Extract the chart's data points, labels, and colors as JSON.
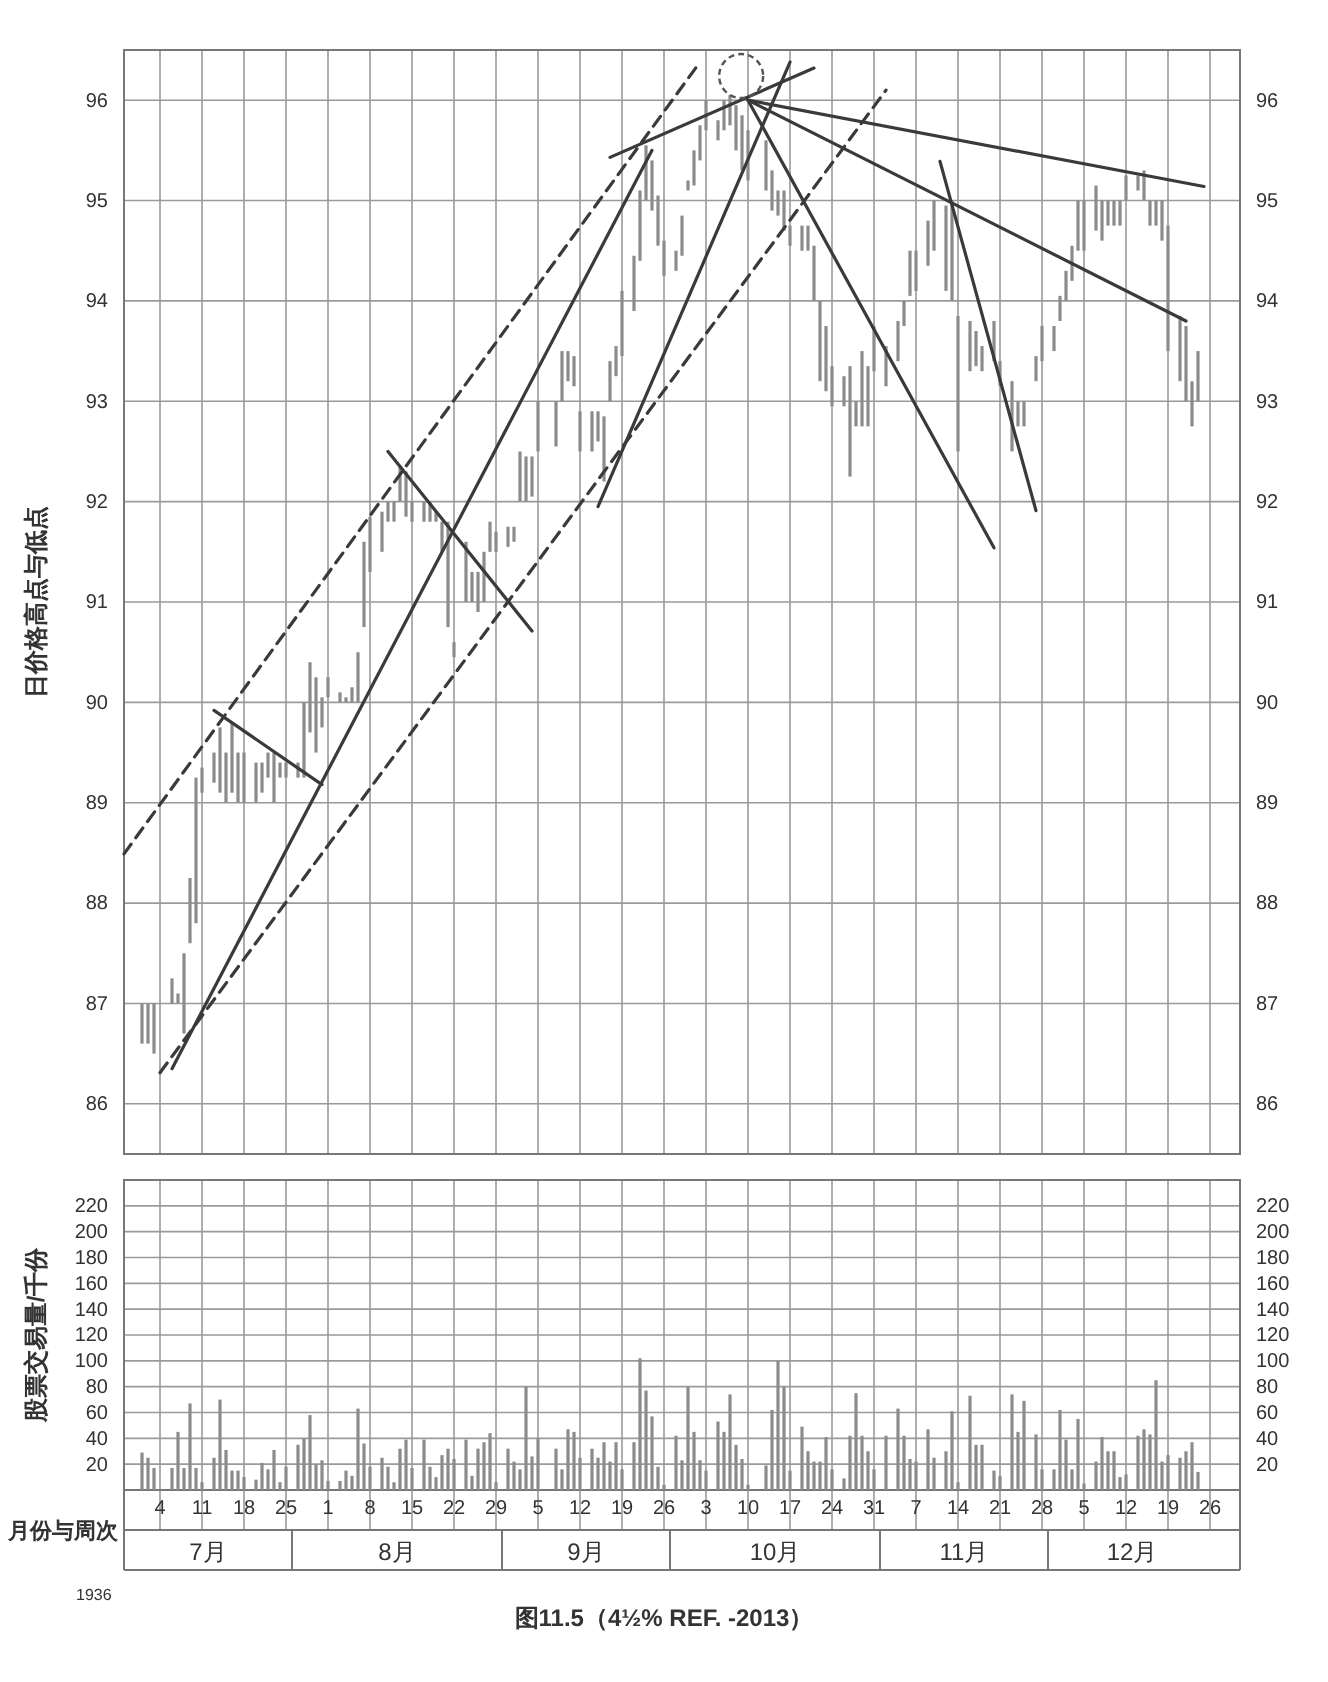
{
  "chart_data": [
    {
      "type": "bar",
      "ylabel": "日价格高点与低点",
      "tick_labels": "y",
      "grid": true,
      "xlim": [
        "1936-06-28",
        "1936-12-31"
      ],
      "xticks": [
        {
          "value": "1936-07-04",
          "label": null
        },
        {
          "value": "1936-07-11",
          "label": null
        },
        {
          "value": "1936-07-18",
          "label": null
        },
        {
          "value": "1936-07-25",
          "label": null
        },
        {
          "value": "1936-08-01",
          "label": null
        },
        {
          "value": "1936-08-08",
          "label": null
        },
        {
          "value": "1936-08-15",
          "label": null
        },
        {
          "value": "1936-08-22",
          "label": null
        },
        {
          "value": "1936-08-29",
          "label": null
        },
        {
          "value": "1936-09-05",
          "label": null
        },
        {
          "value": "1936-09-12",
          "label": null
        },
        {
          "value": "1936-09-19",
          "label": null
        },
        {
          "value": "1936-09-26",
          "label": null
        },
        {
          "value": "1936-10-03",
          "label": null
        },
        {
          "value": "1936-10-10",
          "label": null
        },
        {
          "value": "1936-10-17",
          "label": null
        },
        {
          "value": "1936-10-24",
          "label": null
        },
        {
          "value": "1936-10-31",
          "label": null
        },
        {
          "value": "1936-11-07",
          "label": null
        },
        {
          "value": "1936-11-14",
          "label": null
        },
        {
          "value": "1936-11-21",
          "label": null
        },
        {
          "value": "1936-11-28",
          "label": null
        },
        {
          "value": "1936-12-05",
          "label": null
        },
        {
          "value": "1936-12-12",
          "label": null
        },
        {
          "value": "1936-12-19",
          "label": null
        },
        {
          "value": "1936-12-26",
          "label": null
        }
      ],
      "ylim": [
        85.5,
        96.5
      ],
      "yticks": [
        86,
        87,
        88,
        89,
        90,
        91,
        92,
        93,
        94,
        95,
        96
      ],
      "y2lim": [
        85.5,
        96.5
      ],
      "y2ticks": [
        86,
        87,
        88,
        89,
        90,
        91,
        92,
        93,
        94,
        95,
        96
      ],
      "x": [
        "1936-07-01",
        "1936-07-02",
        "1936-07-03",
        "1936-07-06",
        "1936-07-07",
        "1936-07-08",
        "1936-07-09",
        "1936-07-10",
        "1936-07-11",
        "1936-07-13",
        "1936-07-14",
        "1936-07-15",
        "1936-07-16",
        "1936-07-17",
        "1936-07-18",
        "1936-07-20",
        "1936-07-21",
        "1936-07-22",
        "1936-07-23",
        "1936-07-24",
        "1936-07-25",
        "1936-07-27",
        "1936-07-28",
        "1936-07-29",
        "1936-07-30",
        "1936-07-31",
        "1936-08-01",
        "1936-08-03",
        "1936-08-04",
        "1936-08-05",
        "1936-08-06",
        "1936-08-07",
        "1936-08-08",
        "1936-08-10",
        "1936-08-11",
        "1936-08-12",
        "1936-08-13",
        "1936-08-14",
        "1936-08-15",
        "1936-08-17",
        "1936-08-18",
        "1936-08-19",
        "1936-08-20",
        "1936-08-21",
        "1936-08-22",
        "1936-08-24",
        "1936-08-25",
        "1936-08-26",
        "1936-08-27",
        "1936-08-28",
        "1936-08-29",
        "1936-08-31",
        "1936-09-01",
        "1936-09-02",
        "1936-09-03",
        "1936-09-04",
        "1936-09-05",
        "1936-09-08",
        "1936-09-09",
        "1936-09-10",
        "1936-09-11",
        "1936-09-12",
        "1936-09-14",
        "1936-09-15",
        "1936-09-16",
        "1936-09-17",
        "1936-09-18",
        "1936-09-19",
        "1936-09-21",
        "1936-09-22",
        "1936-09-23",
        "1936-09-24",
        "1936-09-25",
        "1936-09-26",
        "1936-09-28",
        "1936-09-29",
        "1936-09-30",
        "1936-10-01",
        "1936-10-02",
        "1936-10-03",
        "1936-10-05",
        "1936-10-06",
        "1936-10-07",
        "1936-10-08",
        "1936-10-09",
        "1936-10-10",
        "1936-10-13",
        "1936-10-14",
        "1936-10-15",
        "1936-10-16",
        "1936-10-17",
        "1936-10-19",
        "1936-10-20",
        "1936-10-21",
        "1936-10-22",
        "1936-10-23",
        "1936-10-24",
        "1936-10-26",
        "1936-10-27",
        "1936-10-28",
        "1936-10-29",
        "1936-10-30",
        "1936-10-31",
        "1936-11-02",
        "1936-11-04",
        "1936-11-05",
        "1936-11-06",
        "1936-11-07",
        "1936-11-09",
        "1936-11-10",
        "1936-11-12",
        "1936-11-13",
        "1936-11-14",
        "1936-11-16",
        "1936-11-17",
        "1936-11-18",
        "1936-11-20",
        "1936-11-21",
        "1936-11-23",
        "1936-11-24",
        "1936-11-25",
        "1936-11-27",
        "1936-11-28",
        "1936-11-30",
        "1936-12-01",
        "1936-12-02",
        "1936-12-03",
        "1936-12-04",
        "1936-12-05",
        "1936-12-07",
        "1936-12-08",
        "1936-12-09",
        "1936-12-10",
        "1936-12-11",
        "1936-12-12",
        "1936-12-14",
        "1936-12-15",
        "1936-12-16",
        "1936-12-17",
        "1936-12-18",
        "1936-12-19",
        "1936-12-21",
        "1936-12-22",
        "1936-12-23",
        "1936-12-24"
      ],
      "series": [
        {
          "type": "bar",
          "color": "#8c8c8c",
          "base": [
            86.6,
            86.6,
            86.5,
            87.0,
            87.0,
            86.7,
            87.6,
            87.8,
            89.1,
            89.2,
            89.1,
            89.0,
            89.1,
            89.0,
            89.0,
            89.0,
            89.1,
            89.25,
            89.0,
            89.25,
            89.25,
            89.25,
            89.25,
            89.7,
            89.5,
            89.75,
            90.05,
            90.0,
            90.0,
            90.0,
            90.0,
            90.75,
            91.3,
            91.5,
            91.8,
            91.8,
            92.0,
            91.85,
            91.8,
            91.8,
            91.8,
            91.8,
            91.5,
            90.75,
            90.45,
            91.0,
            91.0,
            90.9,
            91.0,
            91.5,
            91.5,
            91.55,
            91.6,
            92.0,
            92.0,
            92.05,
            92.5,
            92.55,
            93.0,
            93.2,
            93.15,
            92.5,
            92.5,
            92.6,
            92.2,
            93.0,
            93.25,
            93.45,
            93.9,
            94.4,
            95.0,
            94.9,
            94.55,
            94.25,
            94.3,
            94.45,
            95.1,
            95.15,
            95.4,
            95.7,
            95.6,
            95.7,
            95.75,
            95.5,
            95.3,
            95.2,
            95.1,
            94.9,
            94.85,
            94.7,
            94.55,
            94.5,
            94.5,
            94.0,
            93.2,
            93.1,
            92.95,
            92.95,
            92.25,
            92.75,
            92.75,
            92.75,
            93.3,
            93.15,
            93.4,
            93.75,
            94.05,
            94.1,
            94.35,
            94.5,
            94.1,
            94.0,
            92.5,
            93.3,
            93.35,
            93.3,
            93.4,
            93.15,
            92.5,
            92.75,
            92.75,
            93.2,
            93.4,
            93.5,
            93.8,
            94.0,
            94.2,
            94.5,
            94.5,
            94.7,
            94.6,
            94.75,
            94.75,
            94.75,
            95.0,
            95.1,
            95.0,
            94.75,
            94.75,
            94.6,
            93.5,
            93.2,
            93.0,
            92.75,
            93.0
          ],
          "values": [
            0.4,
            0.4,
            0.5,
            0.25,
            0.1,
            0.8,
            0.65,
            1.45,
            0.25,
            0.3,
            0.65,
            0.5,
            0.7,
            0.5,
            0.5,
            0.4,
            0.3,
            0.25,
            0.5,
            0.15,
            0.15,
            0.15,
            0.75,
            0.7,
            0.75,
            0.3,
            0.2,
            0.1,
            0.05,
            0.15,
            0.5,
            0.85,
            0.55,
            0.4,
            0.2,
            0.2,
            0.35,
            0.45,
            0.2,
            0.2,
            0.2,
            0.1,
            0.3,
            1.05,
            0.15,
            0.6,
            0.3,
            0.4,
            0.5,
            0.3,
            0.2,
            0.2,
            0.15,
            0.5,
            0.45,
            0.4,
            0.5,
            0.45,
            0.5,
            0.3,
            0.3,
            0.4,
            0.4,
            0.3,
            0.65,
            0.4,
            0.3,
            0.65,
            0.55,
            0.7,
            0.55,
            0.5,
            0.5,
            0.35,
            0.2,
            0.4,
            0.1,
            0.35,
            0.35,
            0.3,
            0.2,
            0.3,
            0.3,
            0.45,
            0.55,
            0.5,
            0.5,
            0.4,
            0.25,
            0.4,
            0.2,
            0.25,
            0.25,
            0.55,
            0.8,
            0.65,
            0.4,
            0.3,
            1.1,
            0.25,
            0.75,
            0.6,
            0.45,
            0.4,
            0.4,
            0.25,
            0.45,
            0.4,
            0.45,
            0.5,
            0.85,
            1.0,
            1.35,
            0.5,
            0.35,
            0.25,
            0.4,
            0.25,
            0.7,
            0.25,
            0.25,
            0.25,
            0.35,
            0.25,
            0.25,
            0.3,
            0.35,
            0.5,
            0.5,
            0.45,
            0.4,
            0.25,
            0.25,
            0.25,
            0.25,
            0.15,
            0.3,
            0.25,
            0.25,
            0.4,
            1.25,
            0.65,
            0.75,
            0.45,
            0.5
          ]
        },
        {
          "type": "line",
          "color": "#3a3a3a",
          "x": [
            "1936-07-06",
            "1936-09-24"
          ],
          "values": [
            86.35,
            95.5
          ]
        },
        {
          "type": "line",
          "color": "#3a3a3a",
          "line_style": "dashed",
          "x": [
            "1936-06-28",
            "1936-10-02"
          ],
          "values": [
            88.49,
            96.38
          ]
        },
        {
          "type": "line",
          "color": "#3a3a3a",
          "line_style": "dashed",
          "x": [
            "1936-07-04",
            "1936-11-02"
          ],
          "values": [
            86.31,
            96.1
          ]
        },
        {
          "type": "line",
          "color": "#3a3a3a",
          "x": [
            "1936-09-15",
            "1936-10-17"
          ],
          "values": [
            91.95,
            96.38
          ]
        },
        {
          "type": "line",
          "color": "#3a3a3a",
          "x": [
            "1936-07-13",
            "1936-07-31"
          ],
          "values": [
            89.92,
            89.18
          ]
        },
        {
          "type": "line",
          "color": "#3a3a3a",
          "x": [
            "1936-08-11",
            "1936-09-04"
          ],
          "values": [
            92.5,
            90.71
          ]
        },
        {
          "type": "line",
          "color": "#3a3a3a",
          "x": [
            "1936-09-17",
            "1936-10-21"
          ],
          "values": [
            95.43,
            96.32
          ]
        },
        {
          "type": "line",
          "color": "#3a3a3a",
          "x": [
            "1936-10-10",
            "1936-12-25"
          ],
          "values": [
            96.0,
            95.14
          ]
        },
        {
          "type": "line",
          "color": "#3a3a3a",
          "x": [
            "1936-10-10",
            "1936-12-22"
          ],
          "values": [
            96.0,
            93.8
          ]
        },
        {
          "type": "line",
          "color": "#3a3a3a",
          "x": [
            "1936-10-10",
            "1936-11-20"
          ],
          "values": [
            96.0,
            91.54
          ]
        },
        {
          "type": "line",
          "color": "#3a3a3a",
          "x": [
            "1936-11-11",
            "1936-11-27"
          ],
          "values": [
            95.39,
            91.91
          ]
        }
      ]
    },
    {
      "type": "bar",
      "title": "图11.5（4½% REF. -2013）",
      "ylabel": "股票交易量/千份",
      "xlabel": "月份与周次",
      "grid": true,
      "color": "#8c8c8c",
      "xlim": [
        "1936-06-28",
        "1936-12-31"
      ],
      "xticks": [
        {
          "value": "1936-07-04",
          "label": "4"
        },
        {
          "value": "1936-07-11",
          "label": "11"
        },
        {
          "value": "1936-07-18",
          "label": "18"
        },
        {
          "value": "1936-07-25",
          "label": "25"
        },
        {
          "value": "1936-08-01",
          "label": "1"
        },
        {
          "value": "1936-08-08",
          "label": "8"
        },
        {
          "value": "1936-08-15",
          "label": "15"
        },
        {
          "value": "1936-08-22",
          "label": "22"
        },
        {
          "value": "1936-08-29",
          "label": "29"
        },
        {
          "value": "1936-09-05",
          "label": "5"
        },
        {
          "value": "1936-09-12",
          "label": "12"
        },
        {
          "value": "1936-09-19",
          "label": "19"
        },
        {
          "value": "1936-09-26",
          "label": "26"
        },
        {
          "value": "1936-10-03",
          "label": "3"
        },
        {
          "value": "1936-10-10",
          "label": "10"
        },
        {
          "value": "1936-10-17",
          "label": "17"
        },
        {
          "value": "1936-10-24",
          "label": "24"
        },
        {
          "value": "1936-10-31",
          "label": "31"
        },
        {
          "value": "1936-11-07",
          "label": "7"
        },
        {
          "value": "1936-11-14",
          "label": "14"
        },
        {
          "value": "1936-11-21",
          "label": "21"
        },
        {
          "value": "1936-11-28",
          "label": "28"
        },
        {
          "value": "1936-12-05",
          "label": "5"
        },
        {
          "value": "1936-12-12",
          "label": "12"
        },
        {
          "value": "1936-12-19",
          "label": "19"
        },
        {
          "value": "1936-12-26",
          "label": "26"
        }
      ],
      "ylim": [
        0,
        240
      ],
      "yticks": [
        20,
        40,
        60,
        80,
        100,
        120,
        140,
        160,
        180,
        200,
        220
      ],
      "y2lim": [
        0,
        240
      ],
      "y2ticks": [
        20,
        40,
        60,
        80,
        100,
        120,
        140,
        160,
        180,
        200,
        220
      ],
      "x": [
        "1936-07-01",
        "1936-07-02",
        "1936-07-03",
        "1936-07-06",
        "1936-07-07",
        "1936-07-08",
        "1936-07-09",
        "1936-07-10",
        "1936-07-11",
        "1936-07-13",
        "1936-07-14",
        "1936-07-15",
        "1936-07-16",
        "1936-07-17",
        "1936-07-18",
        "1936-07-20",
        "1936-07-21",
        "1936-07-22",
        "1936-07-23",
        "1936-07-24",
        "1936-07-25",
        "1936-07-27",
        "1936-07-28",
        "1936-07-29",
        "1936-07-30",
        "1936-07-31",
        "1936-08-01",
        "1936-08-03",
        "1936-08-04",
        "1936-08-05",
        "1936-08-06",
        "1936-08-07",
        "1936-08-08",
        "1936-08-10",
        "1936-08-11",
        "1936-08-12",
        "1936-08-13",
        "1936-08-14",
        "1936-08-15",
        "1936-08-17",
        "1936-08-18",
        "1936-08-19",
        "1936-08-20",
        "1936-08-21",
        "1936-08-22",
        "1936-08-24",
        "1936-08-25",
        "1936-08-26",
        "1936-08-27",
        "1936-08-28",
        "1936-08-29",
        "1936-08-31",
        "1936-09-01",
        "1936-09-02",
        "1936-09-03",
        "1936-09-04",
        "1936-09-05",
        "1936-09-08",
        "1936-09-09",
        "1936-09-10",
        "1936-09-11",
        "1936-09-12",
        "1936-09-14",
        "1936-09-15",
        "1936-09-16",
        "1936-09-17",
        "1936-09-18",
        "1936-09-19",
        "1936-09-21",
        "1936-09-22",
        "1936-09-23",
        "1936-09-24",
        "1936-09-25",
        "1936-09-26",
        "1936-09-28",
        "1936-09-29",
        "1936-09-30",
        "1936-10-01",
        "1936-10-02",
        "1936-10-03",
        "1936-10-05",
        "1936-10-06",
        "1936-10-07",
        "1936-10-08",
        "1936-10-09",
        "1936-10-10",
        "1936-10-13",
        "1936-10-14",
        "1936-10-15",
        "1936-10-16",
        "1936-10-17",
        "1936-10-19",
        "1936-10-20",
        "1936-10-21",
        "1936-10-22",
        "1936-10-23",
        "1936-10-24",
        "1936-10-26",
        "1936-10-27",
        "1936-10-28",
        "1936-10-29",
        "1936-10-30",
        "1936-10-31",
        "1936-11-02",
        "1936-11-04",
        "1936-11-05",
        "1936-11-06",
        "1936-11-07",
        "1936-11-09",
        "1936-11-10",
        "1936-11-12",
        "1936-11-13",
        "1936-11-14",
        "1936-11-16",
        "1936-11-17",
        "1936-11-18",
        "1936-11-20",
        "1936-11-21",
        "1936-11-23",
        "1936-11-24",
        "1936-11-25",
        "1936-11-27",
        "1936-11-28",
        "1936-11-30",
        "1936-12-01",
        "1936-12-02",
        "1936-12-03",
        "1936-12-04",
        "1936-12-05",
        "1936-12-07",
        "1936-12-08",
        "1936-12-09",
        "1936-12-10",
        "1936-12-11",
        "1936-12-12",
        "1936-12-14",
        "1936-12-15",
        "1936-12-16",
        "1936-12-17",
        "1936-12-18",
        "1936-12-19",
        "1936-12-21",
        "1936-12-22",
        "1936-12-23",
        "1936-12-24"
      ],
      "values": [
        29,
        25,
        17,
        17,
        45,
        17,
        67,
        17,
        6,
        25,
        70,
        31,
        15,
        15,
        10,
        8,
        21,
        16,
        31,
        6,
        18,
        35,
        40,
        58,
        20,
        23,
        7,
        7,
        15,
        11,
        63,
        36,
        18,
        25,
        18,
        6,
        32,
        39,
        17,
        39,
        18,
        10,
        27,
        32,
        24,
        39,
        11,
        32,
        37,
        44,
        6,
        32,
        22,
        16,
        80,
        26,
        40,
        32,
        16,
        47,
        45,
        25,
        32,
        25,
        37,
        22,
        37,
        16,
        37,
        102,
        77,
        57,
        18,
        4,
        42,
        23,
        80,
        45,
        23,
        15,
        53,
        45,
        74,
        35,
        24,
        4,
        19,
        62,
        100,
        80,
        15,
        49,
        30,
        22,
        22,
        41,
        16,
        9,
        42,
        75,
        42,
        30,
        16,
        42,
        63,
        42,
        24,
        22,
        47,
        25,
        30,
        61,
        6,
        73,
        35,
        35,
        15,
        11,
        74,
        45,
        69,
        43,
        16,
        16,
        62,
        39,
        16,
        55,
        5,
        22,
        41,
        30,
        30,
        10,
        12,
        42,
        47,
        43,
        85,
        22,
        27,
        25,
        30,
        37,
        14
      ],
      "annotations": [
        "7月",
        "8月",
        "9月",
        "10月",
        "11月",
        "12月",
        "1936"
      ]
    }
  ]
}
